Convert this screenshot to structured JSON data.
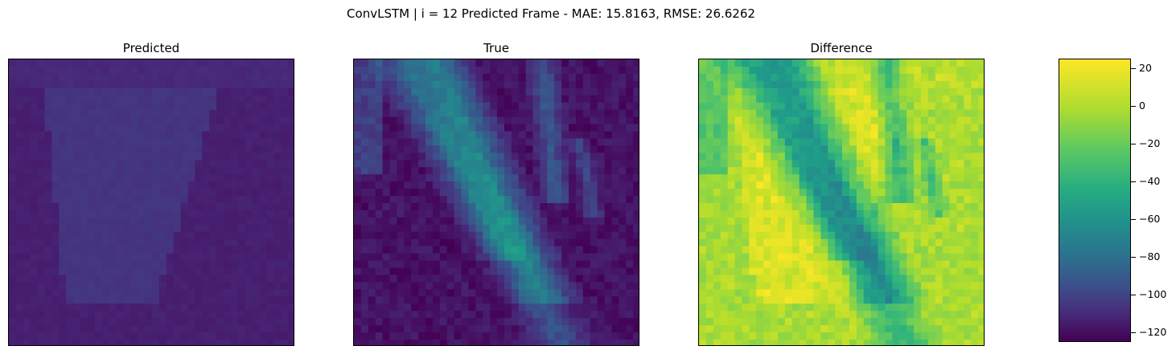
{
  "figure": {
    "suptitle": "ConvLSTM | i = 12 Predicted Frame - MAE: 15.8163, RMSE: 26.6262"
  },
  "chart_data": [
    {
      "type": "heatmap",
      "title": "Predicted",
      "value_range_estimated": [
        -125,
        25
      ],
      "axes_ticks": "hidden",
      "description_values": "mostly low values around -110 to -100 with a lighter triangular region near -100"
    },
    {
      "type": "heatmap",
      "title": "True",
      "value_range_estimated": [
        -125,
        25
      ],
      "axes_ticks": "hidden"
    },
    {
      "type": "heatmap",
      "title": "Difference",
      "value_range_estimated": [
        -120,
        25
      ],
      "axes_ticks": "hidden"
    }
  ],
  "colorbar": {
    "colormap": "viridis",
    "min": -125,
    "max": 25,
    "ticks": [
      20,
      0,
      -20,
      -40,
      -60,
      -80,
      -100,
      -120
    ],
    "tick_labels": [
      "20",
      "0",
      "−20",
      "−40",
      "−60",
      "−80",
      "−100",
      "−120"
    ]
  }
}
